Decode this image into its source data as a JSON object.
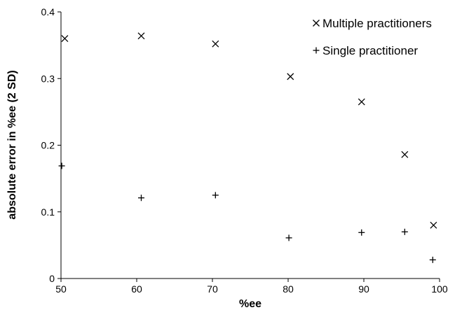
{
  "chart_data": {
    "type": "scatter",
    "title": "",
    "xlabel": "%ee",
    "ylabel": "absolute error in %ee (2 SD)",
    "xlim": [
      50,
      100
    ],
    "ylim": [
      0,
      0.4
    ],
    "x_ticks": [
      "50",
      "60",
      "70",
      "80",
      "90",
      "100"
    ],
    "y_ticks": [
      "0",
      "0.1",
      "0.2",
      "0.3",
      "0.4"
    ],
    "grid": false,
    "legend_position": "top-right",
    "series": [
      {
        "name": "Multiple practitioners",
        "marker": "x",
        "color": "#000000",
        "points": [
          {
            "x": 50.5,
            "y": 0.36
          },
          {
            "x": 60.6,
            "y": 0.364
          },
          {
            "x": 70.4,
            "y": 0.352
          },
          {
            "x": 80.3,
            "y": 0.303
          },
          {
            "x": 89.7,
            "y": 0.265
          },
          {
            "x": 95.4,
            "y": 0.186
          },
          {
            "x": 99.2,
            "y": 0.08
          }
        ]
      },
      {
        "name": "Single practitioner",
        "marker": "+",
        "color": "#000000",
        "points": [
          {
            "x": 50.1,
            "y": 0.169
          },
          {
            "x": 60.6,
            "y": 0.121
          },
          {
            "x": 70.4,
            "y": 0.125
          },
          {
            "x": 80.1,
            "y": 0.061
          },
          {
            "x": 89.7,
            "y": 0.069
          },
          {
            "x": 95.4,
            "y": 0.07
          },
          {
            "x": 99.1,
            "y": 0.028
          }
        ]
      }
    ]
  }
}
